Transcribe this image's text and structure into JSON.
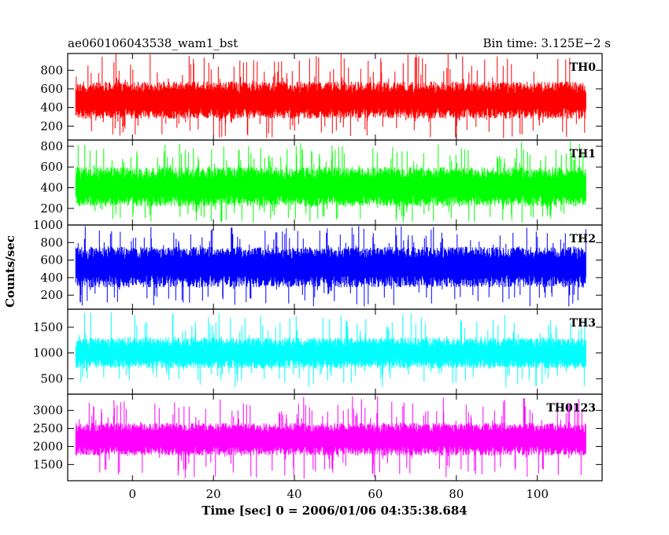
{
  "header": {
    "left": "ae060106043538_wam1_bst",
    "right": "Bin time: 3.125E−2 s"
  },
  "xlabel": "Time [sec] 0 = 2006/01/06 04:35:38.684",
  "ylabel": "Counts/sec",
  "chart_data": [
    {
      "type": "line",
      "name": "TH0",
      "color": "#ff0000",
      "xlim": [
        -16,
        116
      ],
      "ylim": [
        50,
        980
      ],
      "yticks": [
        200,
        400,
        600,
        800
      ],
      "x_range": [
        -14,
        112
      ],
      "level": 470,
      "band_low": 280,
      "band_high": 680,
      "spike_high": 980,
      "dip_low": 70
    },
    {
      "type": "line",
      "name": "TH1",
      "color": "#00ff00",
      "xlim": [
        -16,
        116
      ],
      "ylim": [
        40,
        860
      ],
      "yticks": [
        200,
        400,
        600,
        800
      ],
      "x_range": [
        -14,
        112
      ],
      "level": 400,
      "band_low": 220,
      "band_high": 600,
      "spike_high": 850,
      "dip_low": 60
    },
    {
      "type": "line",
      "name": "TH2",
      "color": "#0000ff",
      "xlim": [
        -16,
        116
      ],
      "ylim": [
        40,
        1000
      ],
      "yticks": [
        200,
        400,
        600,
        800,
        1000
      ],
      "x_range": [
        -14,
        112
      ],
      "level": 520,
      "band_low": 290,
      "band_high": 750,
      "spike_high": 990,
      "dip_low": 70
    },
    {
      "type": "line",
      "name": "TH3",
      "color": "#00ffff",
      "xlim": [
        -16,
        116
      ],
      "ylim": [
        200,
        1850
      ],
      "yticks": [
        500,
        1000,
        1500
      ],
      "x_range": [
        -14,
        112
      ],
      "level": 1000,
      "band_low": 700,
      "band_high": 1300,
      "spike_high": 1800,
      "dip_low": 330
    },
    {
      "type": "line",
      "name": "TH0123",
      "color": "#ff00ff",
      "xlim": [
        -16,
        116
      ],
      "ylim": [
        1050,
        3450
      ],
      "yticks": [
        1500,
        2000,
        2500,
        3000
      ],
      "x_range": [
        -14,
        112
      ],
      "level": 2200,
      "band_low": 1750,
      "band_high": 2650,
      "spike_high": 3400,
      "dip_low": 1100
    }
  ],
  "xticks": [
    0,
    20,
    40,
    60,
    80,
    100
  ]
}
